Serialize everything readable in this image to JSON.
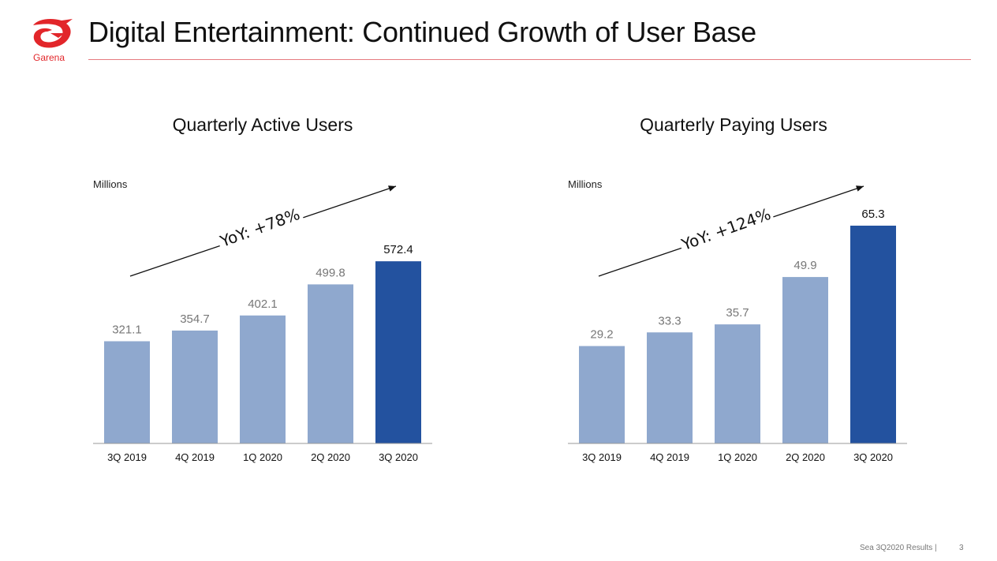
{
  "header": {
    "logo_text": "Garena",
    "title": "Digital Entertainment: Continued Growth of User Base"
  },
  "footer": {
    "source": "Sea 3Q2020 Results |",
    "page_number": "3"
  },
  "colors": {
    "brand_red": "#e2262a",
    "bar_light": "#8fa8ce",
    "bar_highlight": "#23529f"
  },
  "chart_data": [
    {
      "type": "bar",
      "title": "Quarterly Active Users",
      "unit_label": "Millions",
      "categories": [
        "3Q 2019",
        "4Q 2019",
        "1Q 2020",
        "2Q 2020",
        "3Q 2020"
      ],
      "values": [
        321.1,
        354.7,
        402.1,
        499.8,
        572.4
      ],
      "value_labels": [
        "321.1",
        "354.7",
        "402.1",
        "499.8",
        "572.4"
      ],
      "highlight_index": 4,
      "annotation": "YoY: +78%",
      "ylim": [
        0,
        600
      ]
    },
    {
      "type": "bar",
      "title": "Quarterly Paying Users",
      "unit_label": "Millions",
      "categories": [
        "3Q 2019",
        "4Q 2019",
        "1Q 2020",
        "2Q 2020",
        "3Q 2020"
      ],
      "values": [
        29.2,
        33.3,
        35.7,
        49.9,
        65.3
      ],
      "value_labels": [
        "29.2",
        "33.3",
        "35.7",
        "49.9",
        "65.3"
      ],
      "highlight_index": 4,
      "annotation": "YoY: +124%",
      "ylim": [
        0,
        65.3
      ]
    }
  ]
}
